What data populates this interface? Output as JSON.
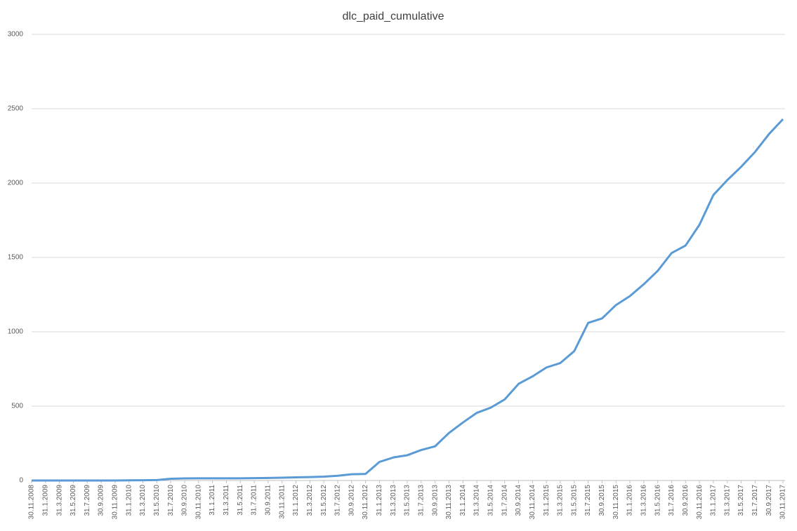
{
  "chart_data": {
    "type": "line",
    "title": "dlc_paid_cumulative",
    "categories": [
      "30.11.2008",
      "31.1.2009",
      "31.3.2009",
      "31.5.2009",
      "31.7.2009",
      "30.9.2009",
      "30.11.2009",
      "31.1.2010",
      "31.3.2010",
      "31.5.2010",
      "31.7.2010",
      "30.9.2010",
      "30.11.2010",
      "31.1.2011",
      "31.3.2011",
      "31.5.2011",
      "31.7.2011",
      "30.9.2011",
      "30.11.2011",
      "31.1.2012",
      "31.3.2012",
      "31.5.2012",
      "31.7.2012",
      "30.9.2012",
      "30.11.2012",
      "31.1.2013",
      "31.3.2013",
      "31.5.2013",
      "31.7.2013",
      "30.9.2013",
      "30.11.2013",
      "31.1.2014",
      "31.3.2014",
      "31.5.2014",
      "31.7.2014",
      "30.9.2014",
      "30.11.2014",
      "31.1.2015",
      "31.3.2015",
      "31.5.2015",
      "31.7.2015",
      "30.9.2015",
      "30.11.2015",
      "31.1.2016",
      "31.3.2016",
      "31.5.2016",
      "31.7.2016",
      "30.9.2016",
      "30.11.2016",
      "31.1.2017",
      "31.3.2017",
      "31.5.2017",
      "31.7.2017",
      "30.9.2017",
      "30.11.2017"
    ],
    "series": [
      {
        "name": "dlc_paid_cumulative",
        "color": "#5b9bd5",
        "values": [
          0,
          0,
          0,
          0,
          0,
          0,
          0,
          1,
          2,
          3,
          12,
          14,
          15,
          15,
          15,
          15,
          16,
          17,
          19,
          21,
          23,
          26,
          32,
          42,
          44,
          125,
          155,
          170,
          205,
          230,
          320,
          390,
          455,
          490,
          545,
          650,
          700,
          760,
          790,
          870,
          1060,
          1090,
          1180,
          1240,
          1320,
          1410,
          1530,
          1580,
          1720,
          1920,
          2020,
          2110,
          2210,
          2330,
          2430
        ]
      }
    ],
    "ylim": [
      0,
      3000
    ],
    "yticks": [
      0,
      500,
      1000,
      1500,
      2000,
      2500,
      3000
    ],
    "grid": true
  }
}
